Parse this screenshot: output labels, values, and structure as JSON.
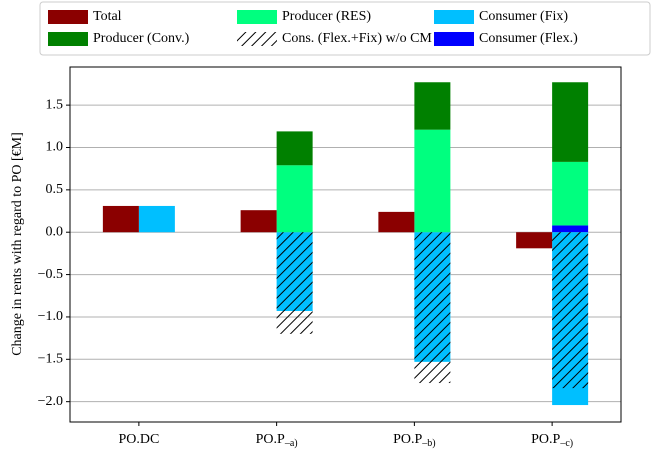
{
  "chart_data": {
    "type": "bar",
    "y_label": "Change in rents with regard to PO [€M]",
    "categories": [
      "PO.DC",
      "PO.P–a)",
      "PO.P–b)",
      "PO.P–c)"
    ],
    "series": [
      {
        "name": "Total",
        "color": "#8b0000",
        "side": "left",
        "values": [
          0.31,
          0.26,
          0.24,
          -0.19
        ]
      },
      {
        "name": "Producer (Conv.)",
        "color": "#008000",
        "side": "right",
        "values": [
          0,
          0.4,
          0.56,
          0.94
        ]
      },
      {
        "name": "Producer (RES)",
        "color": "#00ff7f",
        "side": "right",
        "values": [
          0,
          0.79,
          1.21,
          0.75
        ]
      },
      {
        "name": "Cons. (Flex.+Fix) w/o CM",
        "color": "none",
        "hatch": true,
        "side": "right",
        "values": [
          0,
          -1.2,
          -1.78,
          -1.84
        ]
      },
      {
        "name": "Consumer (Fix)",
        "color": "#00bfff",
        "side": "right",
        "values": [
          0.31,
          -0.93,
          -1.53,
          -2.04
        ]
      },
      {
        "name": "Consumer (Flex.)",
        "color": "#0000ff",
        "side": "right",
        "values": [
          0,
          0,
          0,
          0.08
        ]
      }
    ],
    "ylim": [
      -2.24,
      1.95
    ],
    "yticks": [
      {
        "value": -2.0,
        "label": "−2.0"
      },
      {
        "value": -1.5,
        "label": "−1.5"
      },
      {
        "value": -1.0,
        "label": "−1.0"
      },
      {
        "value": -0.5,
        "label": "−0.5"
      },
      {
        "value": 0.0,
        "label": "0.0"
      },
      0.5,
      {
        "value": 1.0,
        "label": "1.0"
      },
      1.5
    ],
    "grid": true
  }
}
